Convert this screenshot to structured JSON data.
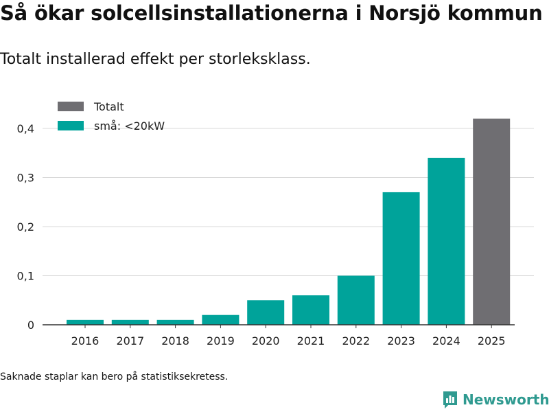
{
  "title": "Så ökar solcellsinstallationerna i Norsjö kommun",
  "subtitle": "Totalt installerad effekt per storleksklass.",
  "footnote": "Saknade staplar kan bero på statistiksekretess.",
  "brand": {
    "name": "Newsworthy",
    "icon": "newsworthy-logo-icon"
  },
  "colors": {
    "small": "#00a39a",
    "total": "#6f6e72",
    "grid": "#d9d9d9",
    "axis": "#333333"
  },
  "chart_data": {
    "type": "bar",
    "title": "Så ökar solcellsinstallationerna i Norsjö kommun",
    "subtitle": "Totalt installerad effekt per storleksklass.",
    "xlabel": "",
    "ylabel": "",
    "ylim": [
      0,
      0.42
    ],
    "yticks": [
      0,
      0.1,
      0.2,
      0.3,
      0.4
    ],
    "ytick_labels": [
      "0",
      "0,1",
      "0,2",
      "0,3",
      "0,4"
    ],
    "grid": true,
    "legend_position": "top-left",
    "legend": [
      {
        "name": "Totalt",
        "color": "#6f6e72"
      },
      {
        "name": "små: <20kW",
        "color": "#00a39a"
      }
    ],
    "categories": [
      "2016",
      "2017",
      "2018",
      "2019",
      "2020",
      "2021",
      "2022",
      "2023",
      "2024",
      "2025"
    ],
    "series": [
      {
        "name": "små: <20kW",
        "values": [
          0.01,
          0.01,
          0.01,
          0.02,
          0.05,
          0.06,
          0.1,
          0.27,
          0.34,
          null
        ]
      },
      {
        "name": "Totalt",
        "values": [
          null,
          null,
          null,
          null,
          null,
          null,
          null,
          null,
          null,
          0.42
        ]
      }
    ]
  }
}
